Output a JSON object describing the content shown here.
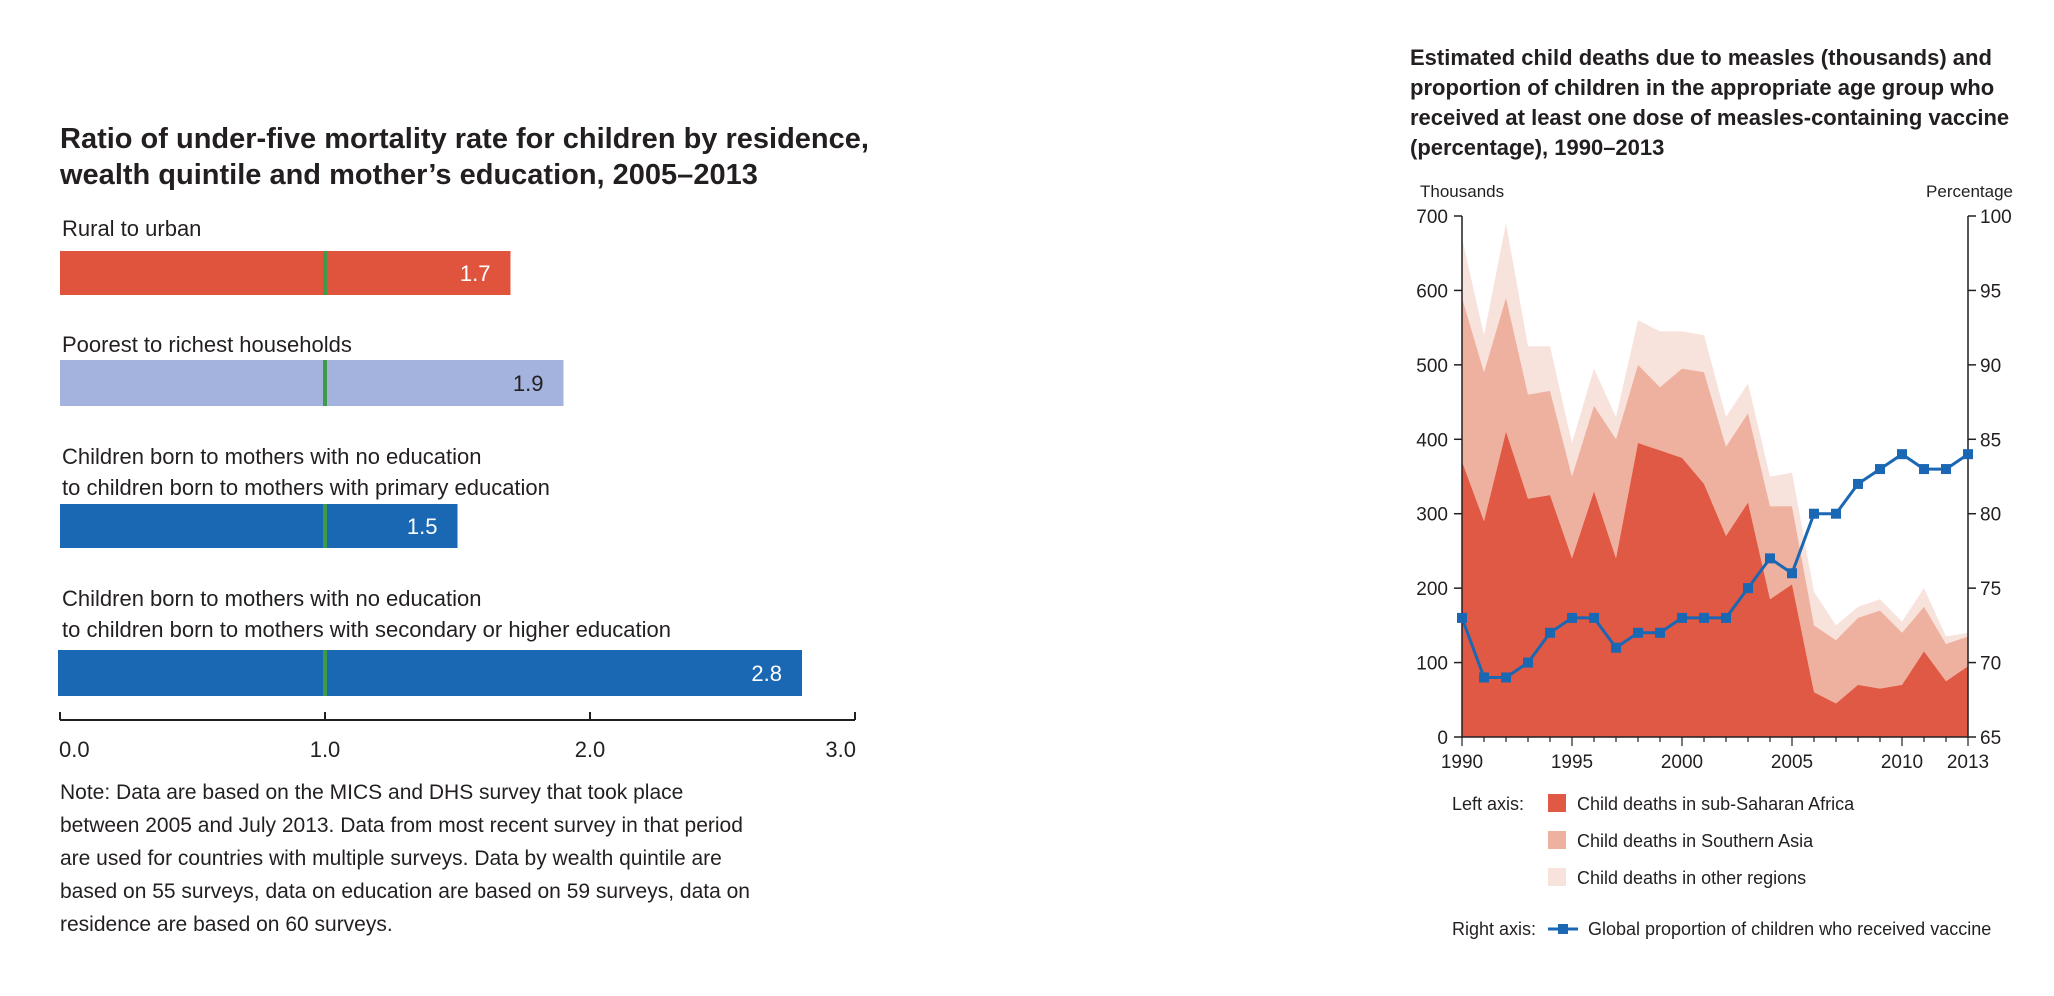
{
  "chart_data": [
    {
      "type": "bar",
      "orientation": "horizontal",
      "title_lines": [
        "Ratio of under-five mortality rate for children by  residence,",
        "wealth quintile and mother’s education, 2005–2013"
      ],
      "categories": [
        {
          "label_lines": [
            "Rural to urban"
          ],
          "value": 1.7,
          "value_label": "1.7",
          "color": "#e0543e",
          "label_color": "#ffffff"
        },
        {
          "label_lines": [
            "Poorest to richest households"
          ],
          "value": 1.9,
          "value_label": "1.9",
          "color": "#a3b3dd",
          "label_color": "#231f20"
        },
        {
          "label_lines": [
            "Children born to mothers with no education",
            "to children born to mothers with primary education"
          ],
          "value": 1.5,
          "value_label": "1.5",
          "color": "#1a67b3",
          "label_color": "#ffffff"
        },
        {
          "label_lines": [
            "Children born to mothers with no education",
            "to children born to mothers with secondary or higher education"
          ],
          "value": 2.8,
          "value_label": "2.8",
          "color": "#1a67b3",
          "label_color": "#ffffff"
        }
      ],
      "reference_value": 1.0,
      "reference_color": "#3e9a48",
      "xlim": [
        0,
        3
      ],
      "xticks": [
        0,
        1,
        2,
        3
      ],
      "xtick_labels": [
        "0.0",
        "1.0",
        "2.0",
        "3.0"
      ],
      "note_lines": [
        "Note: Data are based on the MICS and DHS survey that took place",
        "between 2005 and July 2013. Data from most recent survey in that period",
        "are used for countries with multiple surveys. Data by wealth quintile are",
        "based on 55 surveys, data on education are based on 59 surveys, data on",
        "residence are based on 60 surveys."
      ]
    },
    {
      "type": "area",
      "stacked": true,
      "secondary_type": "line",
      "title_lines": [
        "Estimated child deaths due to measles (thousands) and",
        "proportion of children in the appropriate age group who",
        "received at least one dose of measles-containing vaccine",
        "(percentage), 1990–2013"
      ],
      "ylabel_left": "Thousands",
      "ylabel_right": "Percentage",
      "ylim_left": [
        0,
        700
      ],
      "yticks_left": [
        0,
        100,
        200,
        300,
        400,
        500,
        600,
        700
      ],
      "ylim_right": [
        65,
        100
      ],
      "yticks_right": [
        65,
        70,
        75,
        80,
        85,
        90,
        95,
        100
      ],
      "xlim": [
        1990,
        2013
      ],
      "xticks": [
        1990,
        1995,
        2000,
        2005,
        2010,
        2013
      ],
      "x": [
        1990,
        1991,
        1992,
        1993,
        1994,
        1995,
        1996,
        1997,
        1998,
        1999,
        2000,
        2001,
        2002,
        2003,
        2004,
        2005,
        2006,
        2007,
        2008,
        2009,
        2010,
        2011,
        2012,
        2013
      ],
      "series": [
        {
          "name": "Child deaths in sub-Saharan Africa",
          "axis": "left",
          "color": "#df5944",
          "values": [
            370,
            290,
            410,
            320,
            325,
            240,
            330,
            240,
            395,
            385,
            375,
            340,
            270,
            315,
            185,
            205,
            60,
            45,
            70,
            65,
            70,
            115,
            75,
            95
          ]
        },
        {
          "name": "Child deaths in Southern Asia",
          "axis": "left",
          "color": "#efb19f",
          "values": [
            220,
            200,
            180,
            140,
            140,
            110,
            115,
            160,
            105,
            85,
            120,
            150,
            120,
            120,
            125,
            105,
            90,
            85,
            90,
            105,
            70,
            60,
            50,
            40
          ]
        },
        {
          "name": "Child deaths in other regions",
          "axis": "left",
          "color": "#f8e2dc",
          "values": [
            80,
            50,
            100,
            65,
            60,
            45,
            50,
            30,
            60,
            75,
            50,
            50,
            40,
            40,
            40,
            45,
            45,
            20,
            15,
            15,
            15,
            25,
            10,
            5
          ]
        },
        {
          "name": "Global proportion of children who received vaccine",
          "axis": "right",
          "color": "#1a67b3",
          "values": [
            73,
            69,
            69,
            70,
            72,
            73,
            73,
            71,
            72,
            72,
            73,
            73,
            73,
            75,
            77,
            76,
            80,
            80,
            82,
            83,
            84,
            83,
            83,
            84
          ]
        }
      ],
      "legend": {
        "left_axis_label": "Left axis:",
        "right_axis_label": "Right axis:",
        "placement": "bottom"
      }
    }
  ]
}
